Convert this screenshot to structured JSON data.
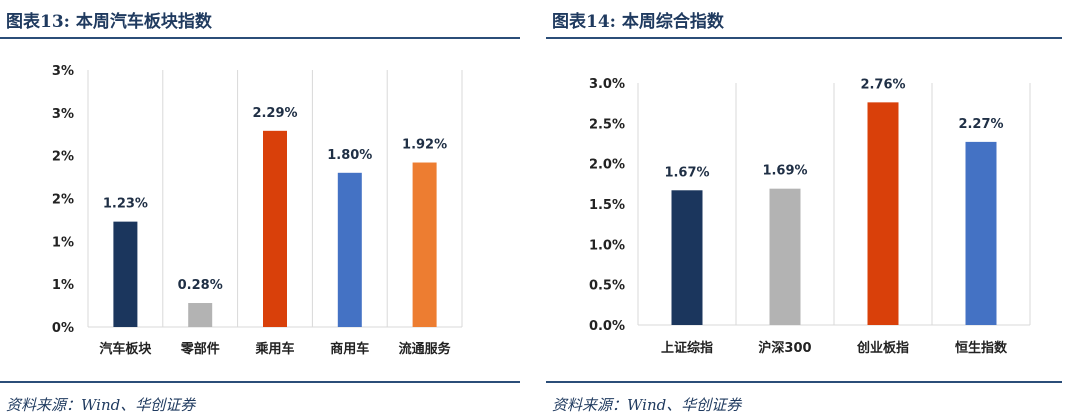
{
  "left_panel": {
    "title": "图表13:  本周汽车板块指数",
    "source": "资料来源：Wind、华创证券"
  },
  "right_panel": {
    "title": "图表14:  本周综合指数",
    "source": "资料来源：Wind、华创证券"
  },
  "chart_data": [
    {
      "type": "bar",
      "title": "",
      "xlabel": "",
      "ylabel": "",
      "categories": [
        "汽车板块",
        "零部件",
        "乘用车",
        "商用车",
        "流通服务"
      ],
      "values": [
        1.23,
        0.28,
        2.29,
        1.8,
        1.92
      ],
      "data_labels": [
        "1.23%",
        "0.28%",
        "2.29%",
        "1.80%",
        "1.92%"
      ],
      "colors": [
        "#1b365d",
        "#b3b3b3",
        "#d9400a",
        "#4472c4",
        "#ed7d31"
      ],
      "ylim": [
        0,
        3
      ],
      "yticks": [
        0,
        0.5,
        1,
        1.5,
        2,
        2.5,
        3
      ],
      "ytick_labels": [
        "0%",
        "1%",
        "1%",
        "2%",
        "2%",
        "3%",
        "3%"
      ],
      "grid": "vertical-category-separators",
      "legend": "none"
    },
    {
      "type": "bar",
      "title": "",
      "xlabel": "",
      "ylabel": "",
      "categories": [
        "上证综指",
        "沪深300",
        "创业板指",
        "恒生指数"
      ],
      "values": [
        1.67,
        1.69,
        2.76,
        2.27
      ],
      "data_labels": [
        "1.67%",
        "1.69%",
        "2.76%",
        "2.27%"
      ],
      "colors": [
        "#1b365d",
        "#b3b3b3",
        "#d9400a",
        "#4472c4"
      ],
      "ylim": [
        0,
        3.0
      ],
      "yticks": [
        0,
        0.5,
        1.0,
        1.5,
        2.0,
        2.5,
        3.0
      ],
      "ytick_labels": [
        "0.0%",
        "0.5%",
        "1.0%",
        "1.5%",
        "2.0%",
        "2.5%",
        "3.0%"
      ],
      "grid": "vertical-category-separators",
      "legend": "none"
    }
  ]
}
